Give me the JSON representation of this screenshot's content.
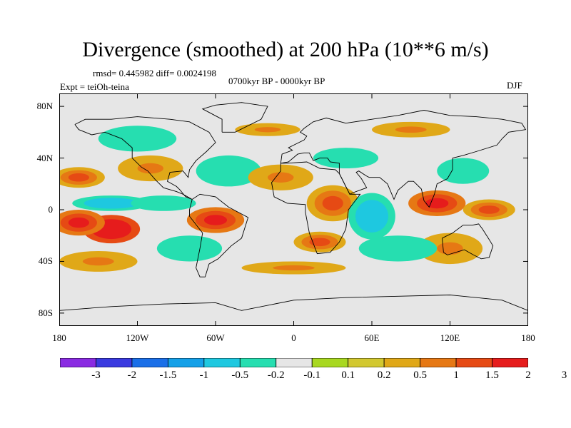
{
  "title": "Divergence (smoothed) at 200 hPa (10**6 m/s)",
  "stats_text": "rmsd= 0.445982 diff= 0.0024198",
  "period_text": "0700kyr BP - 0000kyr BP",
  "expt_text": "Expt = teiOh-teina",
  "season_text": "DJF",
  "y_ticks": [
    {
      "label": "80N",
      "lat": 80
    },
    {
      "label": "40N",
      "lat": 40
    },
    {
      "label": "0",
      "lat": 0
    },
    {
      "label": "40S",
      "lat": -40
    },
    {
      "label": "80S",
      "lat": -80
    }
  ],
  "x_ticks": [
    {
      "label": "180",
      "lon": -180
    },
    {
      "label": "120W",
      "lon": -120
    },
    {
      "label": "60W",
      "lon": -60
    },
    {
      "label": "0",
      "lon": 0
    },
    {
      "label": "60E",
      "lon": 60
    },
    {
      "label": "120E",
      "lon": 120
    },
    {
      "label": "180",
      "lon": 180
    }
  ],
  "colors": {
    "background": "#e6e6e6",
    "coast": "#000000",
    "bins": [
      "#8a2be2",
      "#3a3ae0",
      "#1a6fe8",
      "#14a0e8",
      "#1ec8e0",
      "#26deb0",
      "#e6e6e6",
      "#a8d820",
      "#d2c830",
      "#e0a818",
      "#e67814",
      "#e64a14",
      "#e61c1c"
    ]
  },
  "colorbar_labels": [
    "-3",
    "-2",
    "-1.5",
    "-1",
    "-0.5",
    "-0.2",
    "-0.1",
    "0.1",
    "0.2",
    "0.5",
    "1",
    "1.5",
    "2",
    "3"
  ],
  "field_anomalies": [
    {
      "lon": -140,
      "lat": -15,
      "value": 3,
      "rx": 22,
      "ry": 11
    },
    {
      "lon": -165,
      "lat": -10,
      "value": 1.5,
      "rx": 20,
      "ry": 10
    },
    {
      "lon": -140,
      "lat": 5,
      "value": -1,
      "rx": 30,
      "ry": 6
    },
    {
      "lon": -100,
      "lat": 5,
      "value": -0.5,
      "rx": 25,
      "ry": 6
    },
    {
      "lon": -165,
      "lat": 25,
      "value": 1,
      "rx": 20,
      "ry": 8
    },
    {
      "lon": -110,
      "lat": 32,
      "value": 0.5,
      "rx": 25,
      "ry": 10
    },
    {
      "lon": -120,
      "lat": 55,
      "value": -0.5,
      "rx": 30,
      "ry": 10
    },
    {
      "lon": -60,
      "lat": -8,
      "value": 1.5,
      "rx": 22,
      "ry": 10
    },
    {
      "lon": -80,
      "lat": -30,
      "value": -0.5,
      "rx": 25,
      "ry": 10
    },
    {
      "lon": -50,
      "lat": 30,
      "value": -0.5,
      "rx": 25,
      "ry": 12
    },
    {
      "lon": -10,
      "lat": 25,
      "value": 0.5,
      "rx": 25,
      "ry": 10
    },
    {
      "lon": 40,
      "lat": 40,
      "value": -0.5,
      "rx": 25,
      "ry": 8
    },
    {
      "lon": 30,
      "lat": 5,
      "value": 1,
      "rx": 20,
      "ry": 14
    },
    {
      "lon": 60,
      "lat": -5,
      "value": -1,
      "rx": 18,
      "ry": 18
    },
    {
      "lon": 20,
      "lat": -25,
      "value": 1,
      "rx": 20,
      "ry": 8
    },
    {
      "lon": 110,
      "lat": 5,
      "value": 1.5,
      "rx": 22,
      "ry": 10
    },
    {
      "lon": 130,
      "lat": 30,
      "value": -0.5,
      "rx": 20,
      "ry": 10
    },
    {
      "lon": 150,
      "lat": 0,
      "value": 1,
      "rx": 20,
      "ry": 8
    },
    {
      "lon": 120,
      "lat": -30,
      "value": 0.5,
      "rx": 25,
      "ry": 12
    },
    {
      "lon": 80,
      "lat": -30,
      "value": -0.5,
      "rx": 30,
      "ry": 10
    },
    {
      "lon": -150,
      "lat": -40,
      "value": 0.5,
      "rx": 30,
      "ry": 8
    },
    {
      "lon": 0,
      "lat": -45,
      "value": 0.5,
      "rx": 40,
      "ry": 5
    },
    {
      "lon": -20,
      "lat": 62,
      "value": 0.5,
      "rx": 25,
      "ry": 5
    },
    {
      "lon": 90,
      "lat": 62,
      "value": 0.5,
      "rx": 30,
      "ry": 6
    }
  ],
  "coastlines": [
    [
      [
        -168,
        66
      ],
      [
        -160,
        70
      ],
      [
        -140,
        70
      ],
      [
        -120,
        72
      ],
      [
        -95,
        70
      ],
      [
        -80,
        68
      ],
      [
        -65,
        60
      ],
      [
        -60,
        52
      ],
      [
        -67,
        45
      ],
      [
        -75,
        38
      ],
      [
        -80,
        31
      ],
      [
        -81,
        25
      ],
      [
        -85,
        30
      ],
      [
        -95,
        29
      ],
      [
        -97,
        22
      ],
      [
        -90,
        18
      ],
      [
        -87,
        15
      ],
      [
        -83,
        10
      ],
      [
        -78,
        8
      ],
      [
        -85,
        12
      ],
      [
        -90,
        14
      ],
      [
        -100,
        17
      ],
      [
        -106,
        23
      ],
      [
        -112,
        30
      ],
      [
        -117,
        33
      ],
      [
        -124,
        40
      ],
      [
        -124,
        48
      ],
      [
        -132,
        55
      ],
      [
        -145,
        60
      ],
      [
        -155,
        58
      ],
      [
        -165,
        62
      ],
      [
        -168,
        66
      ]
    ],
    [
      [
        -78,
        8
      ],
      [
        -72,
        12
      ],
      [
        -60,
        10
      ],
      [
        -50,
        2
      ],
      [
        -35,
        -6
      ],
      [
        -40,
        -22
      ],
      [
        -48,
        -28
      ],
      [
        -58,
        -38
      ],
      [
        -65,
        -42
      ],
      [
        -68,
        -52
      ],
      [
        -72,
        -52
      ],
      [
        -75,
        -45
      ],
      [
        -72,
        -30
      ],
      [
        -70,
        -18
      ],
      [
        -80,
        -5
      ],
      [
        -80,
        0
      ],
      [
        -78,
        8
      ]
    ],
    [
      [
        -10,
        36
      ],
      [
        -5,
        36
      ],
      [
        10,
        37
      ],
      [
        20,
        32
      ],
      [
        32,
        31
      ],
      [
        35,
        28
      ],
      [
        43,
        12
      ],
      [
        51,
        12
      ],
      [
        42,
        0
      ],
      [
        40,
        -15
      ],
      [
        35,
        -25
      ],
      [
        28,
        -33
      ],
      [
        18,
        -34
      ],
      [
        12,
        -18
      ],
      [
        9,
        -2
      ],
      [
        9,
        4
      ],
      [
        -5,
        5
      ],
      [
        -15,
        10
      ],
      [
        -17,
        21
      ],
      [
        -10,
        30
      ],
      [
        -10,
        36
      ]
    ],
    [
      [
        -10,
        36
      ],
      [
        -9,
        43
      ],
      [
        -1,
        46
      ],
      [
        -4,
        48
      ],
      [
        2,
        51
      ],
      [
        8,
        54
      ],
      [
        10,
        57
      ],
      [
        5,
        60
      ],
      [
        8,
        63
      ],
      [
        15,
        68
      ],
      [
        25,
        71
      ],
      [
        40,
        67
      ],
      [
        60,
        70
      ],
      [
        80,
        73
      ],
      [
        100,
        77
      ],
      [
        120,
        73
      ],
      [
        140,
        72
      ],
      [
        160,
        70
      ],
      [
        175,
        67
      ],
      [
        178,
        62
      ],
      [
        165,
        60
      ],
      [
        160,
        55
      ],
      [
        156,
        50
      ],
      [
        140,
        45
      ],
      [
        130,
        42
      ],
      [
        122,
        40
      ],
      [
        122,
        31
      ],
      [
        118,
        24
      ],
      [
        110,
        20
      ],
      [
        108,
        12
      ],
      [
        104,
        2
      ],
      [
        100,
        7
      ],
      [
        98,
        16
      ],
      [
        92,
        22
      ],
      [
        88,
        22
      ],
      [
        80,
        15
      ],
      [
        77,
        8
      ],
      [
        72,
        20
      ],
      [
        66,
        25
      ],
      [
        58,
        25
      ],
      [
        56,
        26
      ],
      [
        50,
        30
      ],
      [
        48,
        29
      ],
      [
        52,
        24
      ],
      [
        56,
        17
      ],
      [
        45,
        13
      ],
      [
        43,
        12
      ],
      [
        35,
        28
      ],
      [
        35,
        36
      ],
      [
        28,
        37
      ],
      [
        26,
        40
      ],
      [
        20,
        40
      ],
      [
        15,
        38
      ],
      [
        12,
        44
      ],
      [
        8,
        44
      ],
      [
        3,
        43
      ],
      [
        -4,
        37
      ],
      [
        -10,
        36
      ]
    ],
    [
      [
        114,
        -22
      ],
      [
        122,
        -18
      ],
      [
        130,
        -12
      ],
      [
        137,
        -12
      ],
      [
        142,
        -11
      ],
      [
        145,
        -15
      ],
      [
        150,
        -23
      ],
      [
        153,
        -28
      ],
      [
        150,
        -37
      ],
      [
        144,
        -38
      ],
      [
        138,
        -35
      ],
      [
        131,
        -31
      ],
      [
        118,
        -35
      ],
      [
        115,
        -33
      ],
      [
        114,
        -22
      ]
    ],
    [
      [
        -55,
        60
      ],
      [
        -45,
        60
      ],
      [
        -25,
        70
      ],
      [
        -20,
        80
      ],
      [
        -40,
        83
      ],
      [
        -60,
        81
      ],
      [
        -70,
        78
      ],
      [
        -55,
        70
      ],
      [
        -55,
        60
      ]
    ],
    [
      [
        -180,
        -78
      ],
      [
        -140,
        -75
      ],
      [
        -100,
        -73
      ],
      [
        -60,
        -72
      ],
      [
        -40,
        -78
      ],
      [
        0,
        -70
      ],
      [
        40,
        -68
      ],
      [
        80,
        -67
      ],
      [
        120,
        -66
      ],
      [
        160,
        -70
      ],
      [
        180,
        -78
      ]
    ]
  ]
}
